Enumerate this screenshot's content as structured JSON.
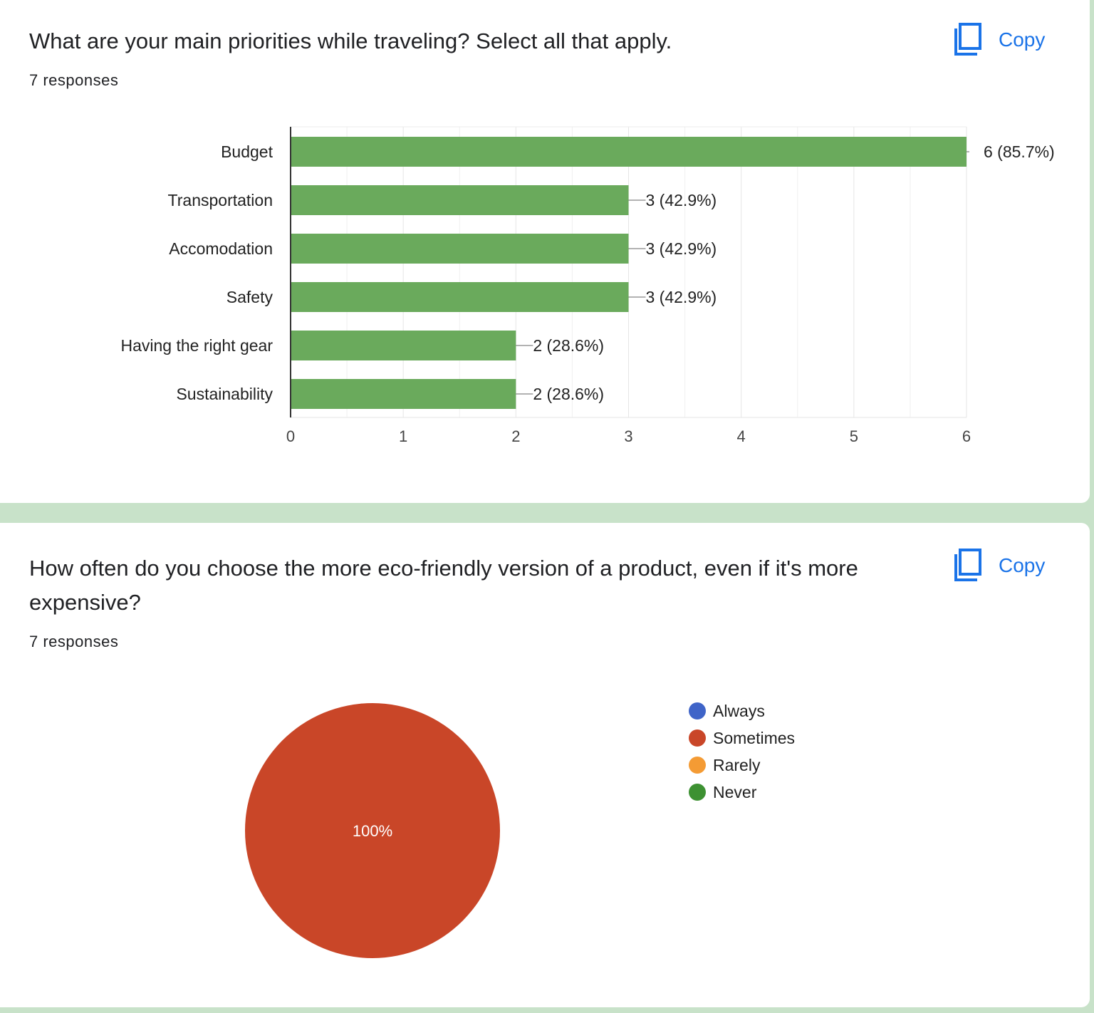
{
  "questions": [
    {
      "title": "What are your main priorities while traveling? Select all that apply.",
      "responses": "7 responses",
      "copy_label": "Copy",
      "copy_icon": "copy-icon"
    },
    {
      "title": "How often do you choose the more eco-friendly version of a product, even if it's more expensive?",
      "responses": "7 responses",
      "copy_label": "Copy",
      "copy_icon": "copy-icon"
    }
  ],
  "colors": {
    "bar": "#6aaa5c",
    "accent": "#1a73e8",
    "background": "#c8e2c9"
  },
  "chart_data": [
    {
      "type": "bar",
      "orientation": "horizontal",
      "categories": [
        "Budget",
        "Transportation",
        "Accomodation",
        "Safety",
        "Having the right gear",
        "Sustainability"
      ],
      "values": [
        6,
        3,
        3,
        3,
        2,
        2
      ],
      "data_labels": [
        "6 (85.7%)",
        "3 (42.9%)",
        "3 (42.9%)",
        "3 (42.9%)",
        "2 (28.6%)",
        "2 (28.6%)"
      ],
      "xlim": [
        0,
        6
      ],
      "xticks": [
        "0",
        "1",
        "2",
        "3",
        "4",
        "5",
        "6"
      ],
      "grid": true
    },
    {
      "type": "pie",
      "categories": [
        "Always",
        "Sometimes",
        "Rarely",
        "Never"
      ],
      "values": [
        0,
        100,
        0,
        0
      ],
      "colors": [
        "#3f64c8",
        "#c94628",
        "#f49b34",
        "#3d9132"
      ],
      "slice_label": "100%",
      "legend_position": "right"
    }
  ]
}
